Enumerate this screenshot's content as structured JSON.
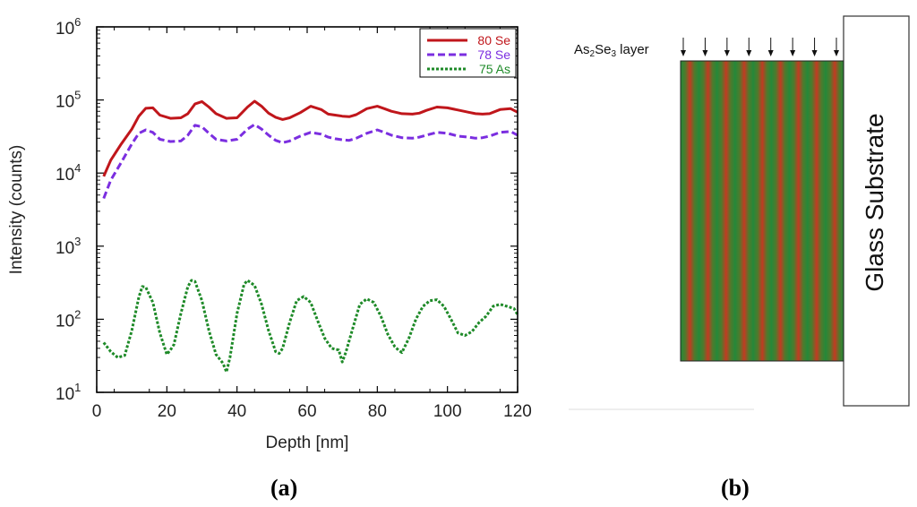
{
  "panel_a_label": "a",
  "panel_b_label": "b",
  "chart_data": {
    "type": "line",
    "title": "",
    "xlabel": "Depth [nm]",
    "ylabel": "Intensity (counts)",
    "xlim": [
      0,
      120
    ],
    "ylim_log10": [
      1,
      6
    ],
    "yscale": "log",
    "xticks": [
      0,
      20,
      40,
      60,
      80,
      100,
      120
    ],
    "ytick_base": "10",
    "ytick_exponents": [
      "1",
      "2",
      "3",
      "4",
      "5",
      "6"
    ],
    "legend_position": "top-right",
    "series": [
      {
        "name": "80 Se",
        "color": "#c0161b",
        "dash": "solid",
        "x": [
          2,
          4,
          7,
          10,
          12,
          14,
          16,
          18,
          21,
          24,
          26,
          28,
          30,
          32,
          34,
          37,
          40,
          43,
          45,
          47,
          49,
          51,
          53,
          55,
          58,
          61,
          64,
          66,
          68,
          70,
          72,
          74,
          77,
          80,
          82,
          84,
          87,
          90,
          92,
          94,
          97,
          100,
          103,
          106,
          108,
          110,
          112,
          115,
          118,
          120
        ],
        "y": [
          9000,
          15000,
          25000,
          40000,
          60000,
          77000,
          78000,
          62000,
          56000,
          57000,
          65000,
          88000,
          95000,
          80000,
          65000,
          56000,
          57000,
          80000,
          96000,
          82000,
          66000,
          58000,
          54000,
          57000,
          67000,
          82000,
          74000,
          64000,
          62000,
          60000,
          59000,
          63000,
          76000,
          82000,
          76000,
          70000,
          65000,
          64000,
          66000,
          72000,
          80000,
          78000,
          73000,
          68000,
          65000,
          64000,
          65000,
          74000,
          76000,
          68000
        ]
      },
      {
        "name": "78 Se",
        "color": "#7b2ee0",
        "dash": "dashed",
        "x": [
          2,
          4,
          7,
          10,
          12,
          14,
          16,
          18,
          21,
          24,
          26,
          28,
          30,
          32,
          34,
          37,
          40,
          43,
          45,
          47,
          49,
          51,
          53,
          55,
          58,
          61,
          64,
          66,
          68,
          70,
          72,
          74,
          77,
          80,
          82,
          84,
          87,
          90,
          92,
          94,
          97,
          100,
          103,
          106,
          108,
          110,
          112,
          115,
          118,
          120
        ],
        "y": [
          4500,
          8000,
          14000,
          25000,
          35000,
          39000,
          36000,
          29000,
          27000,
          27500,
          33000,
          45000,
          43000,
          35000,
          29000,
          27500,
          29000,
          40000,
          46000,
          40000,
          33000,
          28000,
          26000,
          27500,
          32000,
          36000,
          34000,
          31000,
          29500,
          28500,
          28000,
          30000,
          35000,
          39000,
          36000,
          33000,
          30500,
          30000,
          31000,
          33000,
          36000,
          35000,
          32000,
          31000,
          30000,
          30500,
          32000,
          36000,
          37000,
          33000
        ]
      },
      {
        "name": "75 As",
        "color": "#1e8a28",
        "dash": "dotted",
        "x": [
          2,
          4,
          6,
          8,
          10,
          12,
          13,
          14,
          16,
          18,
          20,
          21,
          22,
          24,
          26,
          27,
          28,
          30,
          32,
          34,
          36,
          37,
          38,
          40,
          42,
          43,
          45,
          47,
          49,
          51,
          52,
          53,
          55,
          57,
          59,
          61,
          63,
          65,
          67,
          69,
          70,
          71,
          73,
          75,
          77,
          79,
          81,
          83,
          85,
          86,
          87,
          89,
          91,
          93,
          95,
          97,
          99,
          101,
          103,
          105,
          107,
          109,
          111,
          113,
          115,
          117,
          119,
          120
        ],
        "y": [
          48,
          36,
          30,
          32,
          70,
          200,
          280,
          275,
          170,
          65,
          33,
          38,
          45,
          120,
          280,
          340,
          330,
          180,
          70,
          33,
          25,
          19,
          30,
          120,
          300,
          340,
          290,
          160,
          70,
          36,
          34,
          40,
          90,
          180,
          205,
          170,
          95,
          55,
          40,
          38,
          26,
          35,
          75,
          160,
          190,
          170,
          110,
          62,
          42,
          38,
          35,
          55,
          100,
          150,
          180,
          185,
          150,
          100,
          65,
          60,
          68,
          90,
          110,
          150,
          160,
          150,
          140,
          115
        ]
      }
    ]
  },
  "panel_b": {
    "layer_label_base": "As",
    "layer_label_sub1": "2",
    "layer_label_mid": "Se",
    "layer_label_sub2": "3",
    "layer_label_suffix": " layer",
    "substrate_label": "Glass Substrate",
    "stripe_count": 9,
    "arrow_count": 8,
    "stripe_colors": [
      "#23893a",
      "#c23b22"
    ]
  }
}
